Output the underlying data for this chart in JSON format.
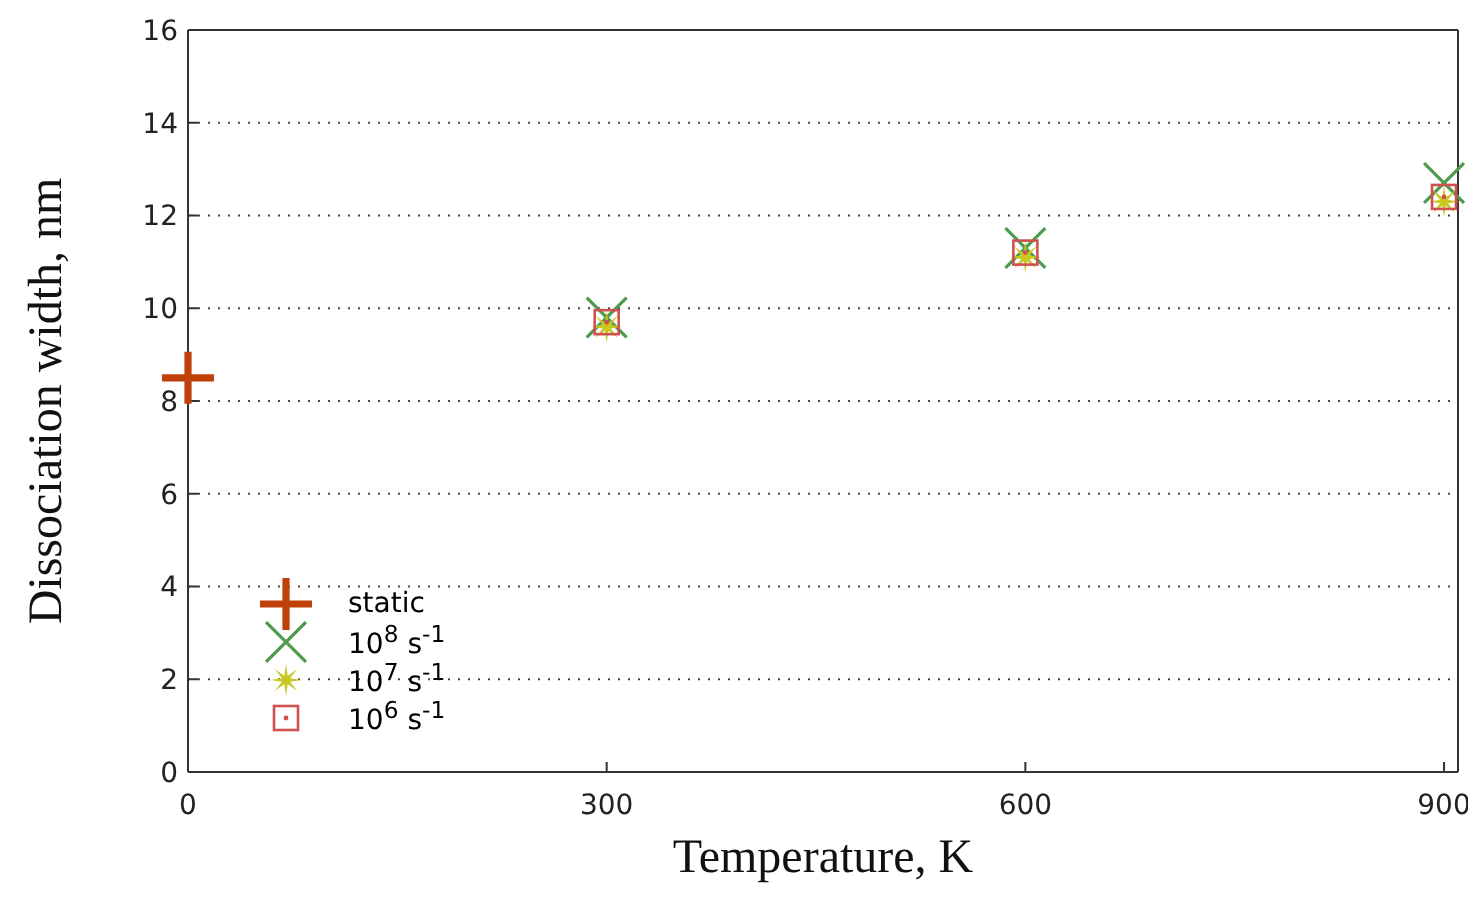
{
  "chart_data": {
    "type": "scatter",
    "xlabel": "Temperature, K",
    "ylabel": "Dissociation width, nm",
    "xlim": [
      0,
      910
    ],
    "xticks": [
      0,
      300,
      600,
      900
    ],
    "ylim": [
      0,
      16
    ],
    "yticks": [
      0,
      2,
      4,
      6,
      8,
      10,
      12,
      14,
      16
    ],
    "grid": "y",
    "legend": "bottom left",
    "series": [
      {
        "name": "static",
        "color": "#c0400a",
        "marker": "cross",
        "x": [
          0
        ],
        "values": [
          8.5
        ]
      },
      {
        "name": "10$^{8}$ s$^{-1}$",
        "color": "#4e9a4e",
        "marker": "cross",
        "x": [
          300,
          600,
          900
        ],
        "values": [
          9.8,
          11.3,
          12.7
        ]
      },
      {
        "name": "10$^{7}$ s$^{-1}$",
        "color": "#c8c81e",
        "marker": "star",
        "x": [
          300,
          600,
          900
        ],
        "values": [
          9.6,
          11.1,
          12.3
        ]
      },
      {
        "name": "10$^{6}$ s$^{-1}$",
        "color": "#d05050",
        "marker": "square",
        "x": [
          300,
          600,
          900
        ],
        "values": [
          9.7,
          11.2,
          12.4
        ]
      }
    ]
  }
}
